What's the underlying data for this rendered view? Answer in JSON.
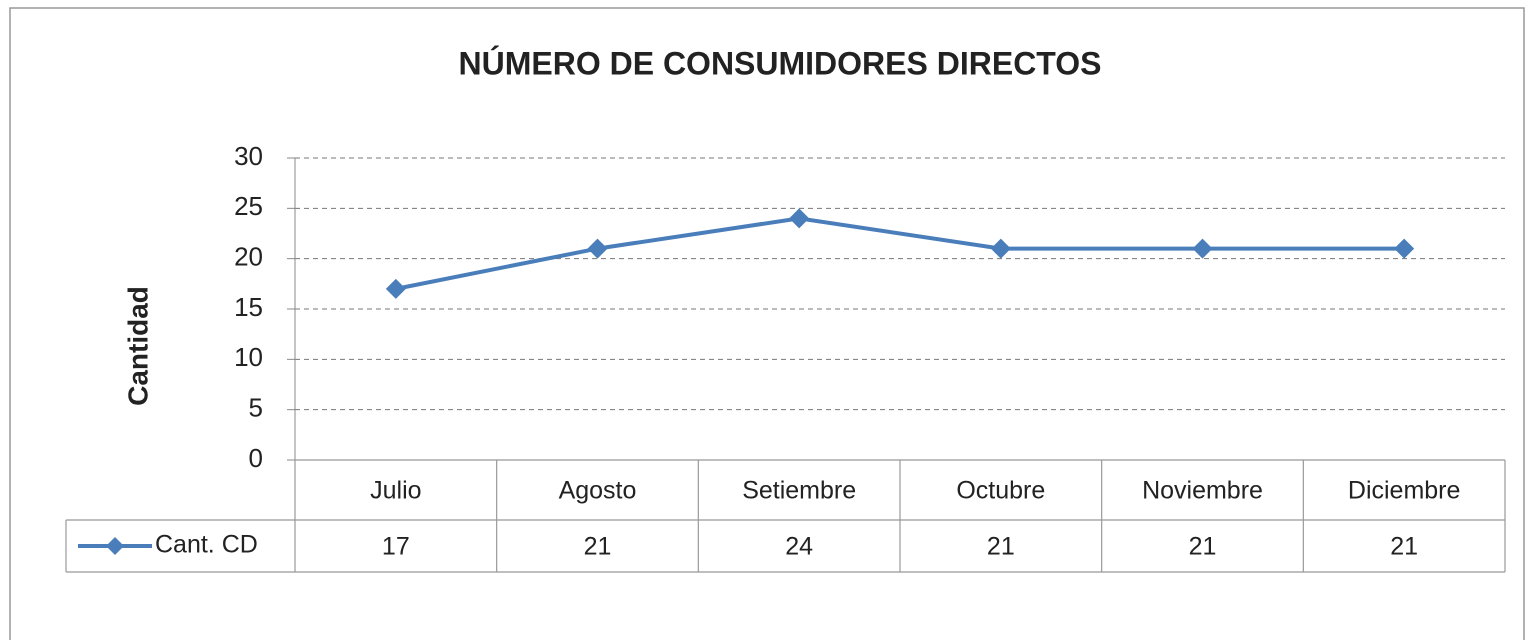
{
  "chart_data": {
    "type": "line",
    "title": "NÚMERO DE CONSUMIDORES DIRECTOS",
    "y_label": "Cantidad",
    "categories": [
      "Julio",
      "Agosto",
      "Setiembre",
      "Octubre",
      "Noviembre",
      "Diciembre"
    ],
    "series": [
      {
        "name": "Cant. CD",
        "color": "#4a7ebb",
        "values": [
          17,
          21,
          24,
          21,
          21,
          21
        ]
      }
    ],
    "ylim": [
      0,
      30
    ],
    "yticks": [
      0,
      5,
      10,
      15,
      20,
      25,
      30
    ],
    "grid": true,
    "data_table": true
  }
}
